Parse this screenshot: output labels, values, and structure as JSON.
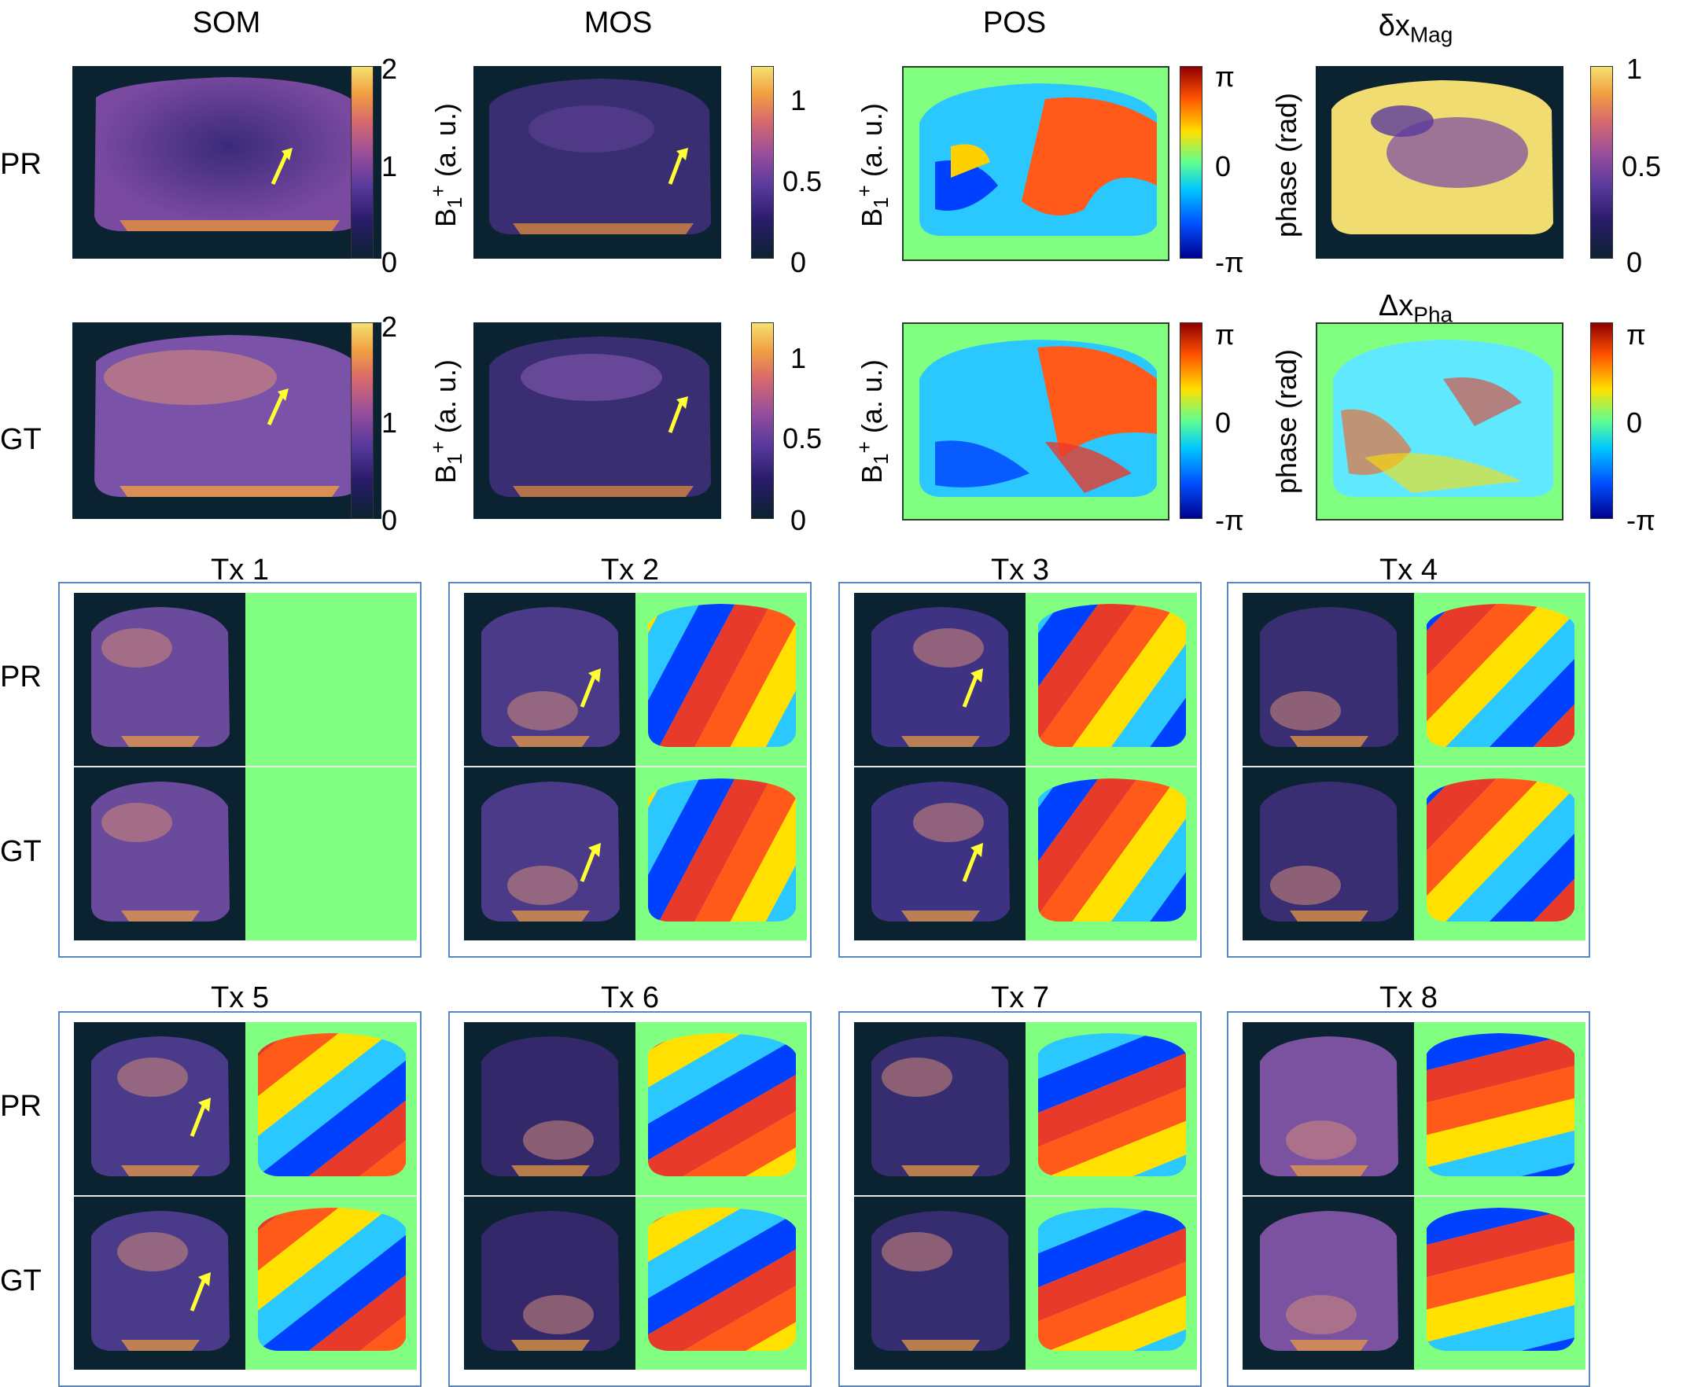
{
  "top": {
    "columns": [
      "SOM",
      "MOS",
      "POS"
    ],
    "dx_mag": {
      "base": "δx",
      "sub": "Mag"
    },
    "dx_pha": {
      "base": "Δx",
      "sub": "Pha"
    },
    "rows": [
      "PR",
      "GT"
    ],
    "axis_b1": {
      "base": "B",
      "sub": "1",
      "sup": "+",
      "unit": " (a. u.)"
    },
    "axis_phase": "phase (rad)",
    "ticks_som": [
      "2",
      "1",
      "0"
    ],
    "ticks_mos": [
      "1",
      "0.5",
      "0"
    ],
    "ticks_pos": [
      "π",
      "0",
      "-π"
    ],
    "ticks_dxmag": [
      "1",
      "0.5",
      "0"
    ]
  },
  "tx": {
    "titles": [
      "Tx 1",
      "Tx 2",
      "Tx 3",
      "Tx 4",
      "Tx 5",
      "Tx 6",
      "Tx 7",
      "Tx 8"
    ],
    "row_labels": [
      "PR",
      "GT"
    ]
  },
  "colors": {
    "background_dark": "#0b2230",
    "phase_background": "#80ff80",
    "panel_border": "#5a86c2",
    "arrow": "#ffff33"
  }
}
